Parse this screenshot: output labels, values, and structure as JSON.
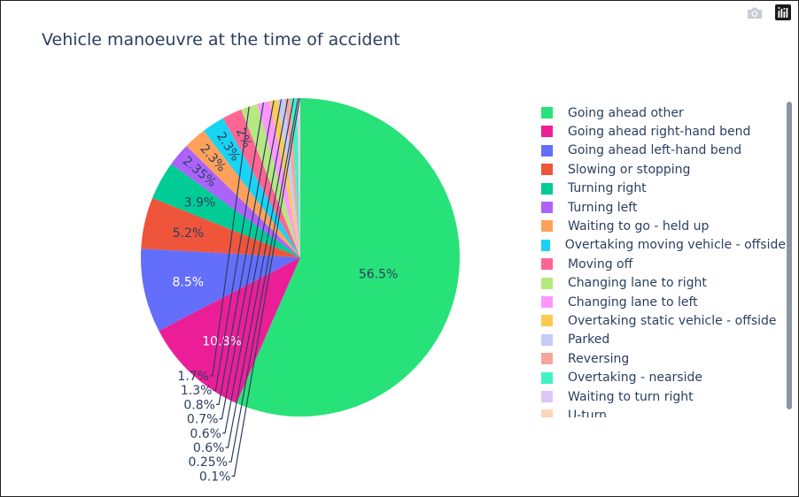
{
  "modebar": {
    "camera_icon": "camera-icon",
    "logo_icon": "plotly-logo-icon"
  },
  "chart_data": {
    "type": "pie",
    "title": "Vehicle manoeuvre at the time of accident",
    "sort": "descending",
    "direction": "clockwise",
    "start_angle": "12 o'clock",
    "legend_position": "right",
    "slices": [
      {
        "label": "Going ahead other",
        "value": 56.5,
        "text": "56.5%",
        "color": "#27e278"
      },
      {
        "label": "Going ahead right-hand bend",
        "value": 10.8,
        "text": "10.8%",
        "color": "#ec1e97"
      },
      {
        "label": "Going ahead left-hand bend",
        "value": 8.5,
        "text": "8.5%",
        "color": "#636efa"
      },
      {
        "label": "Slowing or stopping",
        "value": 5.2,
        "text": "5.2%",
        "color": "#ef553b"
      },
      {
        "label": "Turning right",
        "value": 3.9,
        "text": "3.9%",
        "color": "#00cc96"
      },
      {
        "label": "Turning left",
        "value": 2.35,
        "text": "2.35%",
        "color": "#ab63fa"
      },
      {
        "label": "Waiting to go - held up",
        "value": 2.3,
        "text": "2.3%",
        "color": "#ffa15a"
      },
      {
        "label": "Overtaking moving vehicle - offside",
        "value": 2.3,
        "text": "2.3%",
        "color": "#19d3f3"
      },
      {
        "label": "Moving off",
        "value": 2.0,
        "text": "2%",
        "color": "#ff6692"
      },
      {
        "label": "Changing lane to right",
        "value": 1.7,
        "text": "1.7%",
        "color": "#b6e880"
      },
      {
        "label": "Changing lane to left",
        "value": 1.3,
        "text": "1.3%",
        "color": "#ff97ff"
      },
      {
        "label": "Overtaking static vehicle - offside",
        "value": 0.8,
        "text": "0.8%",
        "color": "#fecb52"
      },
      {
        "label": "Parked",
        "value": 0.7,
        "text": "0.7%",
        "color": "#c6cbf5"
      },
      {
        "label": "Reversing",
        "value": 0.6,
        "text": "0.6%",
        "color": "#f4a79a"
      },
      {
        "label": "Overtaking - nearside",
        "value": 0.6,
        "text": "0.6%",
        "color": "#3ff3c5"
      },
      {
        "label": "Waiting to turn right",
        "value": 0.25,
        "text": "0.25%",
        "color": "#dcc6f8"
      },
      {
        "label": "U-turn",
        "value": 0.1,
        "text": "0.1%",
        "color": "#ffd5b8"
      }
    ]
  }
}
